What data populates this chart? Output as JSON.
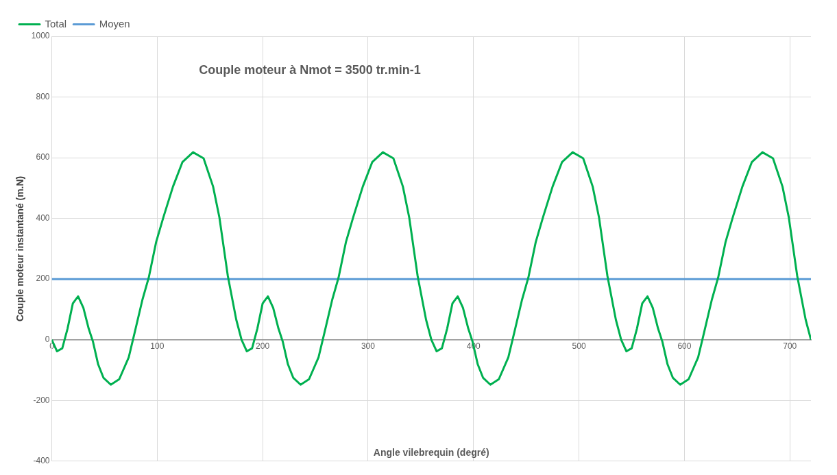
{
  "chart_data": {
    "type": "line",
    "title": "Couple moteur à Nmot = 3500 tr.min-1",
    "xlabel": "Angle vilebrequin (degré)",
    "ylabel": "Couple moteur instantané (m.N)",
    "xlim": [
      0,
      720
    ],
    "xticks": [
      0,
      100,
      200,
      300,
      400,
      500,
      600,
      700
    ],
    "ylim": [
      -400,
      1000
    ],
    "yticks": [
      -400,
      -200,
      0,
      200,
      400,
      600,
      800,
      1000
    ],
    "grid": true,
    "legend": "top left",
    "marker": "none",
    "line_style": "solid",
    "series": [
      {
        "name": "Total",
        "color": "#00b050",
        "x": [
          0,
          5,
          10,
          15,
          20,
          25,
          30,
          35,
          39,
          44,
          49,
          56,
          64,
          73,
          79,
          86,
          92,
          99,
          106,
          115,
          124,
          134,
          144,
          153,
          159,
          167,
          175,
          180,
          185,
          190,
          195,
          200,
          205,
          210,
          215,
          219,
          224,
          229,
          236,
          244,
          253,
          259,
          266,
          272,
          279,
          286,
          295,
          304,
          314,
          324,
          333,
          339,
          347,
          355,
          360,
          365,
          370,
          375,
          380,
          385,
          390,
          395,
          399,
          404,
          409,
          416,
          424,
          433,
          439,
          446,
          452,
          459,
          466,
          475,
          484,
          494,
          504,
          513,
          519,
          527,
          535,
          540,
          545,
          550,
          555,
          560,
          565,
          570,
          575,
          579,
          584,
          589,
          596,
          604,
          613,
          619,
          626,
          632,
          639,
          646,
          655,
          664,
          674,
          684,
          693,
          699,
          707,
          715,
          720
        ],
        "values": [
          0,
          -38,
          -28,
          37,
          120,
          143,
          105,
          37,
          -5,
          -81,
          -125,
          -148,
          -130,
          -58,
          29,
          132,
          205,
          322,
          405,
          505,
          586,
          618,
          598,
          505,
          403,
          210,
          66,
          0,
          -38,
          -28,
          37,
          120,
          143,
          105,
          37,
          -5,
          -81,
          -125,
          -148,
          -130,
          -58,
          29,
          132,
          205,
          322,
          405,
          505,
          586,
          618,
          598,
          505,
          403,
          210,
          66,
          0,
          -38,
          -28,
          37,
          120,
          143,
          105,
          37,
          -5,
          -81,
          -125,
          -148,
          -130,
          -58,
          29,
          132,
          205,
          322,
          405,
          505,
          586,
          618,
          598,
          505,
          403,
          210,
          66,
          0,
          -38,
          -28,
          37,
          120,
          143,
          105,
          37,
          -5,
          -81,
          -125,
          -148,
          -130,
          -58,
          29,
          132,
          205,
          322,
          405,
          505,
          586,
          618,
          598,
          505,
          403,
          210,
          66,
          0
        ]
      },
      {
        "name": "Moyen",
        "color": "#5b9bd5",
        "x": [
          0,
          720
        ],
        "values": [
          200,
          200
        ]
      }
    ]
  }
}
